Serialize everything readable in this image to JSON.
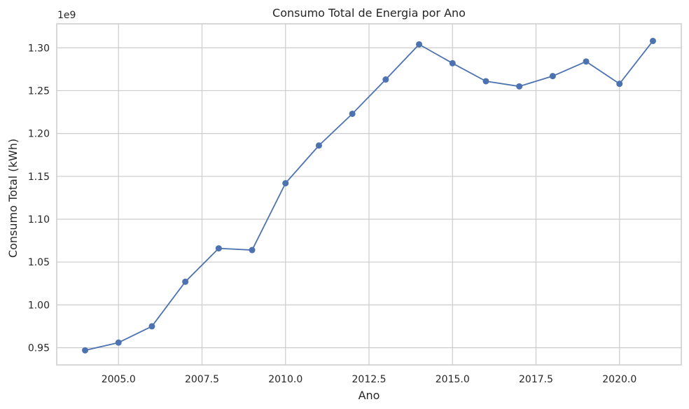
{
  "chart_data": {
    "type": "line",
    "title": "Consumo Total de Energia por Ano",
    "xlabel": "Ano",
    "ylabel": "Consumo Total (kWh)",
    "y_offset_label": "1e9",
    "y_scale_factor": 1000000000,
    "xlim": [
      2003.15,
      2021.85
    ],
    "ylim": [
      0.93,
      1.328
    ],
    "x_ticks": [
      2005.0,
      2007.5,
      2010.0,
      2012.5,
      2015.0,
      2017.5,
      2020.0
    ],
    "x_tick_labels": [
      "2005.0",
      "2007.5",
      "2010.0",
      "2012.5",
      "2015.0",
      "2017.5",
      "2020.0"
    ],
    "y_ticks": [
      0.95,
      1.0,
      1.05,
      1.1,
      1.15,
      1.2,
      1.25,
      1.3
    ],
    "y_tick_labels": [
      "0.95",
      "1.00",
      "1.05",
      "1.10",
      "1.15",
      "1.20",
      "1.25",
      "1.30"
    ],
    "grid": true,
    "line_color": "#4c72b0",
    "grid_color": "#cccccc",
    "spine_color": "#cccccc",
    "series": [
      {
        "x": [
          2004,
          2005,
          2006,
          2007,
          2008,
          2009,
          2010,
          2011,
          2012,
          2013,
          2014,
          2015,
          2016,
          2017,
          2018,
          2019,
          2020,
          2021
        ],
        "values": [
          0.947,
          0.956,
          0.975,
          1.027,
          1.066,
          1.064,
          1.142,
          1.186,
          1.223,
          1.263,
          1.304,
          1.282,
          1.261,
          1.255,
          1.267,
          1.284,
          1.258,
          1.308
        ]
      }
    ]
  }
}
